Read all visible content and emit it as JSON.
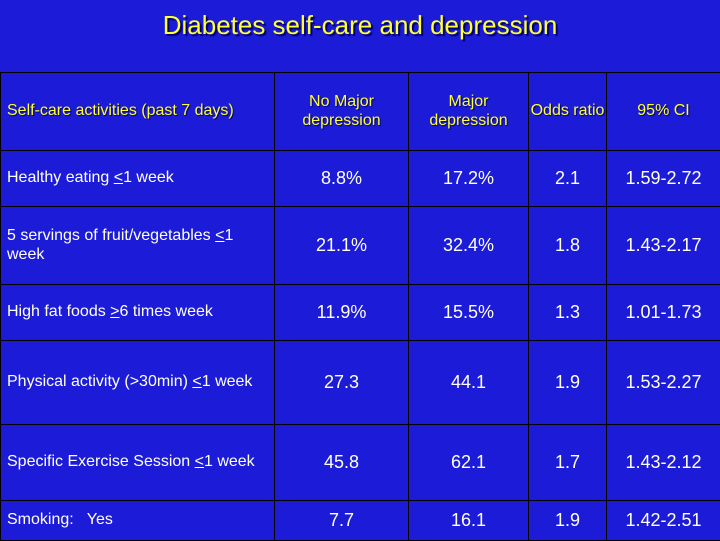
{
  "slide": {
    "title": "Diabetes self-care and depression"
  },
  "table": {
    "headers": {
      "activity": "Self-care activities (past 7 days)",
      "no_major": "No Major depression",
      "major": "Major depression",
      "odds": "Odds ratio",
      "ci": "95% CI"
    },
    "rows": [
      {
        "activity_pre": "Healthy eating ",
        "activity_sym": "<",
        "activity_post": "1 week",
        "no_major": "8.8%",
        "major": "17.2%",
        "odds": "2.1",
        "ci": "1.59-2.72"
      },
      {
        "activity_pre": "5 servings of fruit/vegetables ",
        "activity_sym": "<",
        "activity_post": "1 week",
        "no_major": "21.1%",
        "major": "32.4%",
        "odds": "1.8",
        "ci": "1.43-2.17"
      },
      {
        "activity_pre": "High fat foods ",
        "activity_sym": ">",
        "activity_post": "6 times week",
        "no_major": "11.9%",
        "major": "15.5%",
        "odds": "1.3",
        "ci": "1.01-1.73"
      },
      {
        "activity_pre": "Physical activity (>30min) ",
        "activity_sym": "<",
        "activity_post": "1 week",
        "no_major": "27.3",
        "major": "44.1",
        "odds": "1.9",
        "ci": "1.53-2.27"
      },
      {
        "activity_pre": "Specific Exercise Session ",
        "activity_sym": "<",
        "activity_post": "1 week",
        "no_major": "45.8",
        "major": "62.1",
        "odds": "1.7",
        "ci": "1.43-2.12"
      },
      {
        "activity_pre": "Smoking:   Yes",
        "activity_sym": "",
        "activity_post": "",
        "no_major": "7.7",
        "major": "16.1",
        "odds": "1.9",
        "ci": "1.42-2.51"
      }
    ]
  }
}
